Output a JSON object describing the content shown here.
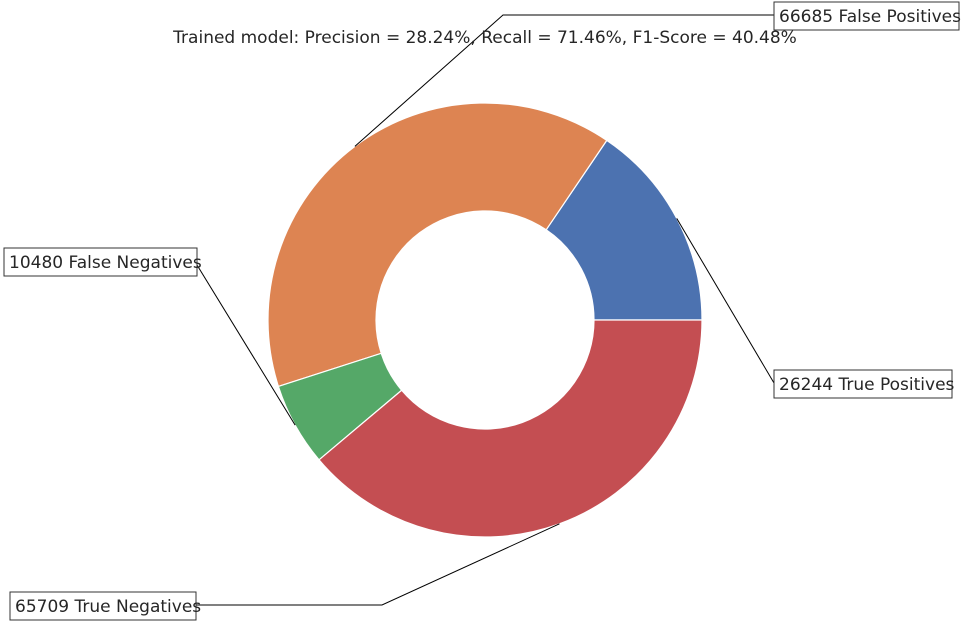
{
  "chart_data": {
    "type": "pie",
    "variant": "donut",
    "title": "Trained model: Precision = 28.24%, Recall = 71.46%, F1-Score = 40.48%",
    "start_angle_deg": 0,
    "direction": "counterclockwise",
    "slices": [
      {
        "name": "True Positives",
        "value": 26244,
        "label": "26244 True Positives",
        "color": "#4c72b0"
      },
      {
        "name": "False Positives",
        "value": 66685,
        "label": "66685 False Positives",
        "color": "#dd8452"
      },
      {
        "name": "False Negatives",
        "value": 10480,
        "label": "10480 False Negatives",
        "color": "#55a868"
      },
      {
        "name": "True Negatives",
        "value": 65709,
        "label": "65709 True Negatives",
        "color": "#c44e52"
      }
    ],
    "legend": "none",
    "grid": false
  }
}
